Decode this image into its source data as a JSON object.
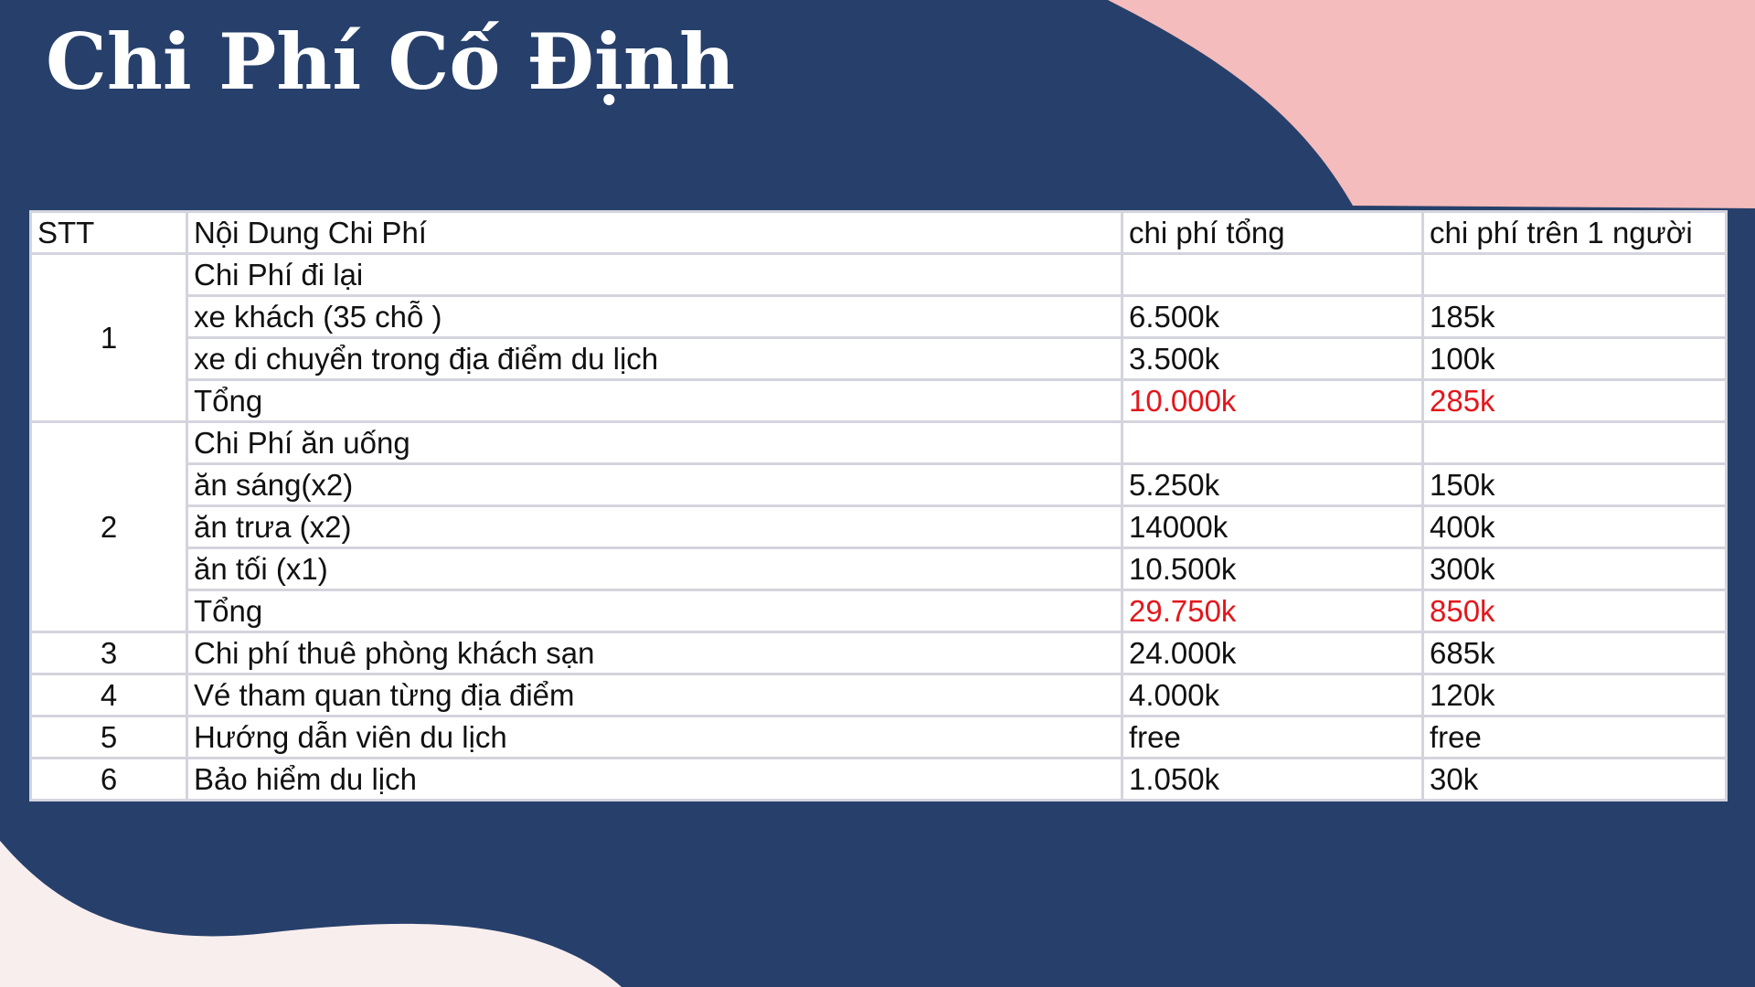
{
  "title": "Chi Phí Cố Định",
  "colors": {
    "background": "#27406b",
    "accent_pink": "#f4bcbc",
    "light_blob": "#f9eeee",
    "total_red": "#e3171c"
  },
  "table": {
    "headers": [
      "STT",
      "Nội Dung Chi Phí",
      "chi phí tổng",
      "chi phí trên 1 người"
    ],
    "groups": [
      {
        "stt": "1",
        "rows": [
          {
            "item": "Chi Phí đi lại",
            "total": "",
            "per_person": ""
          },
          {
            "item": "xe khách (35 chỗ )",
            "total": "6.500k",
            "per_person": "185k"
          },
          {
            "item": "xe di chuyển trong địa điểm du lịch",
            "total": "3.500k",
            "per_person": "100k"
          },
          {
            "item": "Tổng",
            "total": "10.000k",
            "per_person": "285k",
            "highlight": true
          }
        ]
      },
      {
        "stt": "2",
        "rows": [
          {
            "item": "Chi Phí ăn uống",
            "total": "",
            "per_person": ""
          },
          {
            "item": "ăn sáng(x2)",
            "total": "5.250k",
            "per_person": "150k"
          },
          {
            "item": "ăn trưa (x2)",
            "total": "14000k",
            "per_person": "400k"
          },
          {
            "item": "ăn tối (x1)",
            "total": "10.500k",
            "per_person": "300k"
          },
          {
            "item": "Tổng",
            "total": "29.750k",
            "per_person": "850k",
            "highlight": true
          }
        ]
      },
      {
        "stt": "3",
        "rows": [
          {
            "item": "Chi phí thuê phòng khách sạn",
            "total": "24.000k",
            "per_person": "685k"
          }
        ]
      },
      {
        "stt": "4",
        "rows": [
          {
            "item": "Vé tham quan từng địa điểm",
            "total": "4.000k",
            "per_person": "120k"
          }
        ]
      },
      {
        "stt": "5",
        "rows": [
          {
            "item": "Hướng dẫn viên du lịch",
            "total": "free",
            "per_person": "free"
          }
        ]
      },
      {
        "stt": "6",
        "rows": [
          {
            "item": "Bảo hiểm du lịch",
            "total": "1.050k",
            "per_person": "30k"
          }
        ]
      }
    ]
  }
}
